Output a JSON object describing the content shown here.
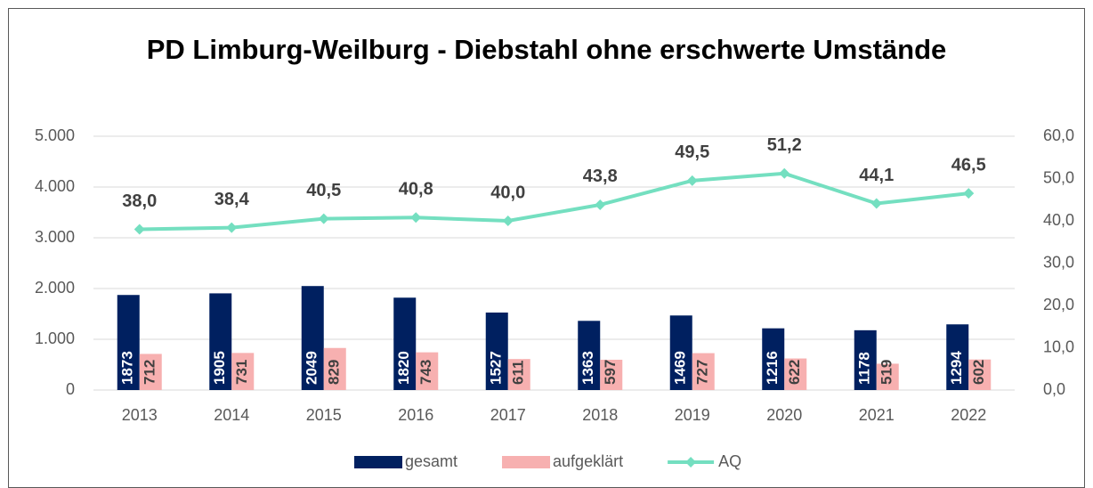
{
  "chart_data": {
    "type": "bar",
    "title": "PD Limburg-Weilburg - Diebstahl ohne erschwerte Umstände",
    "categories": [
      "2013",
      "2014",
      "2015",
      "2016",
      "2017",
      "2018",
      "2019",
      "2020",
      "2021",
      "2022"
    ],
    "series": [
      {
        "name": "gesamt",
        "type": "bar",
        "color": "#002060",
        "label_color": "#ffffff",
        "values": [
          1873,
          1905,
          2049,
          1820,
          1527,
          1363,
          1469,
          1216,
          1178,
          1294
        ]
      },
      {
        "name": "aufgeklärt",
        "type": "bar",
        "color": "#f7b0b0",
        "label_color": "#404040",
        "values": [
          712,
          731,
          829,
          743,
          611,
          597,
          727,
          622,
          519,
          602
        ]
      },
      {
        "name": "AQ",
        "type": "line",
        "axis": "y2",
        "color": "#74dfc0",
        "label_color": "#404040",
        "values": [
          38.0,
          38.4,
          40.5,
          40.8,
          40.0,
          43.8,
          49.5,
          51.2,
          44.1,
          46.5
        ],
        "value_labels": [
          "38,0",
          "38,4",
          "40,5",
          "40,8",
          "40,0",
          "43,8",
          "49,5",
          "51,2",
          "44,1",
          "46,5"
        ]
      }
    ],
    "ylim": [
      0,
      5000
    ],
    "yticks": [
      0,
      {
        "value": 1000,
        "label": "1.000"
      },
      {
        "value": 2000,
        "label": "2.000"
      },
      {
        "value": 3000,
        "label": "3.000"
      },
      {
        "value": 4000,
        "label": "4.000"
      },
      {
        "value": 5000,
        "label": "5.000"
      }
    ],
    "y2lim": [
      0,
      60
    ],
    "y2ticks": [
      {
        "value": 0,
        "label": "0,0"
      },
      {
        "value": 10,
        "label": "10,0"
      },
      {
        "value": 20,
        "label": "20,0"
      },
      {
        "value": 30,
        "label": "30,0"
      },
      {
        "value": 40,
        "label": "40,0"
      },
      {
        "value": 50,
        "label": "50,0"
      },
      {
        "value": 60,
        "label": "60,0"
      }
    ],
    "grid": true,
    "legend": "bottom"
  }
}
